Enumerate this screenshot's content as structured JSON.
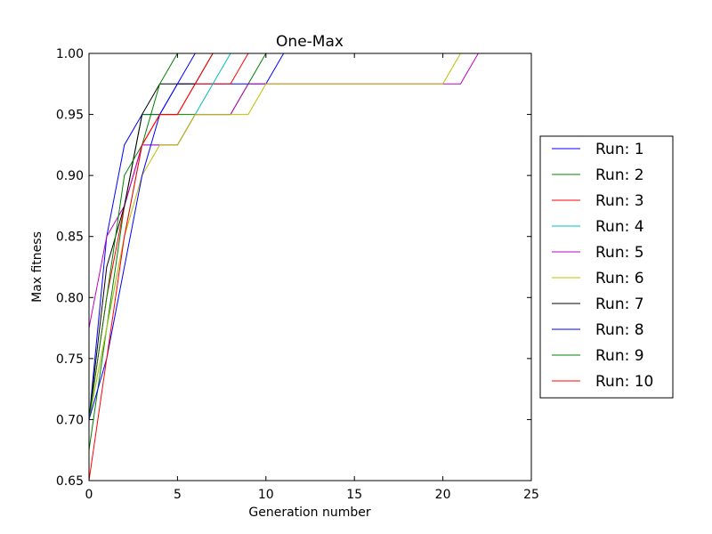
{
  "chart_data": {
    "type": "line",
    "title": "One-Max",
    "xlabel": "Generation number",
    "ylabel": "Max fitness",
    "xlim": [
      0,
      25
    ],
    "ylim": [
      0.65,
      1.0
    ],
    "xticks": [
      "0",
      "5",
      "10",
      "15",
      "20",
      "25"
    ],
    "yticks": [
      "0.65",
      "0.70",
      "0.75",
      "0.80",
      "0.85",
      "0.90",
      "0.95",
      "1.00"
    ],
    "grid": false,
    "legend_position": "right",
    "series": [
      {
        "name": "Run: 1",
        "color": "#0000ff",
        "x": [
          0,
          1,
          2,
          3,
          4,
          5,
          6,
          7,
          8,
          9,
          10,
          11
        ],
        "y": [
          0.7,
          0.85,
          0.925,
          0.95,
          0.95,
          0.975,
          0.975,
          0.975,
          0.975,
          0.975,
          0.975,
          1.0
        ]
      },
      {
        "name": "Run: 2",
        "color": "#008000",
        "x": [
          0,
          1,
          2,
          3,
          4,
          5,
          6,
          7,
          8,
          9,
          10
        ],
        "y": [
          0.675,
          0.775,
          0.875,
          0.95,
          0.95,
          0.95,
          0.95,
          0.95,
          0.95,
          0.975,
          1.0
        ]
      },
      {
        "name": "Run: 3",
        "color": "#ff0000",
        "x": [
          0,
          1,
          2,
          3,
          4,
          5,
          6,
          7,
          8,
          9
        ],
        "y": [
          0.7,
          0.8,
          0.875,
          0.925,
          0.95,
          0.95,
          0.975,
          0.975,
          0.975,
          1.0
        ]
      },
      {
        "name": "Run: 4",
        "color": "#00bfbf",
        "x": [
          0,
          1,
          2,
          3,
          4,
          5,
          6,
          7,
          8
        ],
        "y": [
          0.7,
          0.775,
          0.85,
          0.925,
          0.925,
          0.925,
          0.95,
          0.975,
          1.0
        ]
      },
      {
        "name": "Run: 5",
        "color": "#bf00bf",
        "x": [
          0,
          1,
          2,
          3,
          4,
          5,
          6,
          7,
          8,
          9,
          10,
          20,
          21,
          22
        ],
        "y": [
          0.775,
          0.85,
          0.875,
          0.925,
          0.925,
          0.925,
          0.95,
          0.95,
          0.95,
          0.975,
          0.975,
          0.975,
          0.975,
          1.0
        ]
      },
      {
        "name": "Run: 6",
        "color": "#bfbf00",
        "x": [
          0,
          1,
          2,
          3,
          4,
          5,
          6,
          7,
          8,
          9,
          10,
          20,
          21
        ],
        "y": [
          0.7,
          0.775,
          0.85,
          0.9,
          0.925,
          0.925,
          0.95,
          0.95,
          0.95,
          0.95,
          0.975,
          0.975,
          1.0
        ]
      },
      {
        "name": "Run: 7",
        "color": "#000000",
        "x": [
          0,
          1,
          2,
          3,
          4,
          5,
          6,
          7
        ],
        "y": [
          0.7,
          0.825,
          0.875,
          0.95,
          0.975,
          0.975,
          0.975,
          1.0
        ]
      },
      {
        "name": "Run: 8",
        "color": "#0000ff",
        "x": [
          0,
          1,
          2,
          3,
          4,
          5,
          6
        ],
        "y": [
          0.7,
          0.75,
          0.825,
          0.9,
          0.95,
          0.975,
          1.0
        ]
      },
      {
        "name": "Run: 9",
        "color": "#008000",
        "x": [
          0,
          1,
          2,
          3,
          4,
          5
        ],
        "y": [
          0.7,
          0.8,
          0.9,
          0.925,
          0.975,
          1.0
        ]
      },
      {
        "name": "Run: 10",
        "color": "#ff0000",
        "x": [
          0,
          1,
          2,
          3,
          4,
          5,
          6,
          7
        ],
        "y": [
          0.65,
          0.75,
          0.85,
          0.925,
          0.95,
          0.95,
          0.975,
          1.0
        ]
      }
    ]
  }
}
